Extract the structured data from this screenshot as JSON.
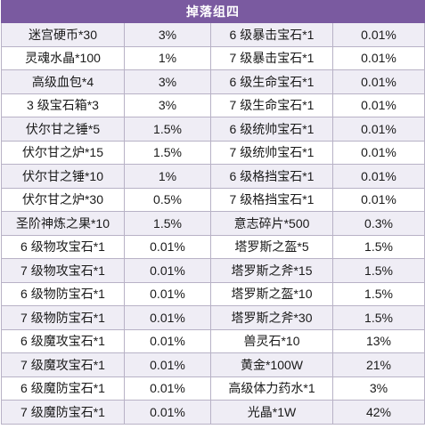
{
  "table": {
    "title": "掉落组四",
    "rows": [
      {
        "item_a": "迷宫硬币*30",
        "rate_a": "3%",
        "item_b": "6 级暴击宝石*1",
        "rate_b": "0.01%"
      },
      {
        "item_a": "灵魂水晶*100",
        "rate_a": "1%",
        "item_b": "7 级暴击宝石*1",
        "rate_b": "0.01%"
      },
      {
        "item_a": "高级血包*4",
        "rate_a": "3%",
        "item_b": "6 级生命宝石*1",
        "rate_b": "0.01%"
      },
      {
        "item_a": "3 级宝石箱*3",
        "rate_a": "3%",
        "item_b": "7 级生命宝石*1",
        "rate_b": "0.01%"
      },
      {
        "item_a": "伏尔甘之锤*5",
        "rate_a": "1.5%",
        "item_b": "6 级统帅宝石*1",
        "rate_b": "0.01%"
      },
      {
        "item_a": "伏尔甘之炉*15",
        "rate_a": "1.5%",
        "item_b": "7 级统帅宝石*1",
        "rate_b": "0.01%"
      },
      {
        "item_a": "伏尔甘之锤*10",
        "rate_a": "1%",
        "item_b": "6 级格挡宝石*1",
        "rate_b": "0.01%"
      },
      {
        "item_a": "伏尔甘之炉*30",
        "rate_a": "0.5%",
        "item_b": "7 级格挡宝石*1",
        "rate_b": "0.01%"
      },
      {
        "item_a": "圣阶神炼之果*10",
        "rate_a": "1.5%",
        "item_b": "意志碎片*500",
        "rate_b": "0.3%"
      },
      {
        "item_a": "6 级物攻宝石*1",
        "rate_a": "0.01%",
        "item_b": "塔罗斯之盔*5",
        "rate_b": "1.5%"
      },
      {
        "item_a": "7 级物攻宝石*1",
        "rate_a": "0.01%",
        "item_b": "塔罗斯之斧*15",
        "rate_b": "1.5%"
      },
      {
        "item_a": "6 级物防宝石*1",
        "rate_a": "0.01%",
        "item_b": "塔罗斯之盔*10",
        "rate_b": "1.5%"
      },
      {
        "item_a": "7 级物防宝石*1",
        "rate_a": "0.01%",
        "item_b": "塔罗斯之斧*30",
        "rate_b": "1.5%"
      },
      {
        "item_a": "6 级魔攻宝石*1",
        "rate_a": "0.01%",
        "item_b": "兽灵石*10",
        "rate_b": "13%"
      },
      {
        "item_a": "7 级魔攻宝石*1",
        "rate_a": "0.01%",
        "item_b": "黄金*100W",
        "rate_b": "21%"
      },
      {
        "item_a": "6 级魔防宝石*1",
        "rate_a": "0.01%",
        "item_b": "高级体力药水*1",
        "rate_b": "3%"
      },
      {
        "item_a": "7 级魔防宝石*1",
        "rate_a": "0.01%",
        "item_b": "光晶*1W",
        "rate_b": "42%"
      }
    ]
  }
}
